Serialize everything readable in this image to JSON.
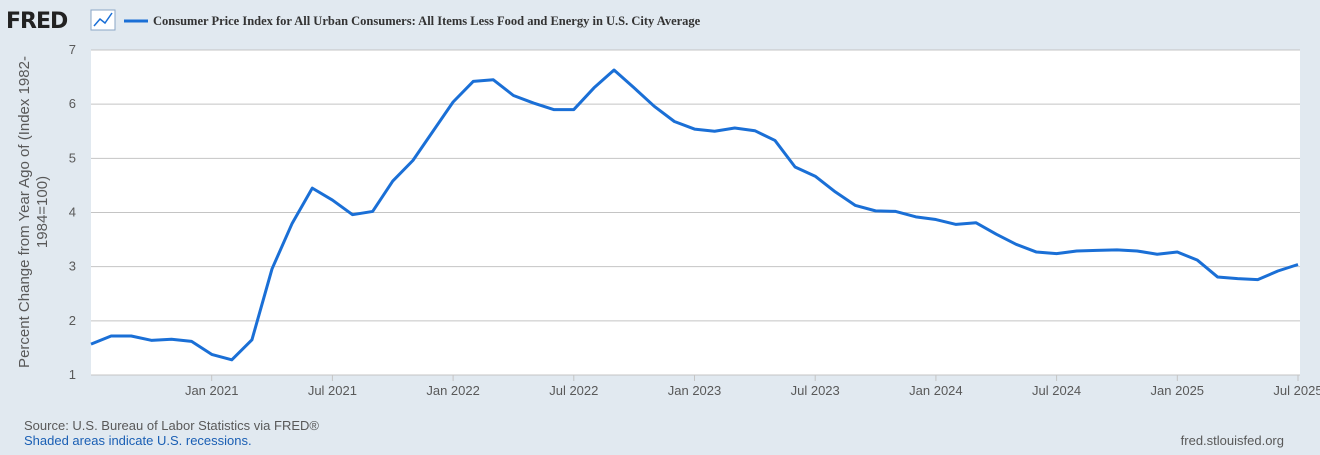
{
  "header": {
    "logo": "FRED"
  },
  "chart_data": {
    "type": "line",
    "title": "Consumer Price Index for All Urban Consumers: All Items Less Food and Energy in U.S. City Average",
    "y_label": [
      "Percent Change from Year Ago of (Index 1982-",
      "1984=100)"
    ],
    "x": [
      "2020-07",
      "2020-08",
      "2020-09",
      "2020-10",
      "2020-11",
      "2020-12",
      "2021-01",
      "2021-02",
      "2021-03",
      "2021-04",
      "2021-05",
      "2021-06",
      "2021-07",
      "2021-08",
      "2021-09",
      "2021-10",
      "2021-11",
      "2021-12",
      "2022-01",
      "2022-02",
      "2022-03",
      "2022-04",
      "2022-05",
      "2022-06",
      "2022-07",
      "2022-08",
      "2022-09",
      "2022-10",
      "2022-11",
      "2022-12",
      "2023-01",
      "2023-02",
      "2023-03",
      "2023-04",
      "2023-05",
      "2023-06",
      "2023-07",
      "2023-08",
      "2023-09",
      "2023-10",
      "2023-11",
      "2023-12",
      "2024-01",
      "2024-02",
      "2024-03",
      "2024-04",
      "2024-05",
      "2024-06",
      "2024-07",
      "2024-08",
      "2024-09",
      "2024-10",
      "2024-11",
      "2024-12",
      "2025-01",
      "2025-02",
      "2025-03",
      "2025-04",
      "2025-05",
      "2025-06",
      "2025-07"
    ],
    "series": [
      {
        "name": "Consumer Price Index for All Urban Consumers: All Items Less Food and Energy in U.S. City Average",
        "color": "#1a6fd6",
        "values": [
          1.57,
          1.72,
          1.72,
          1.64,
          1.66,
          1.62,
          1.38,
          1.28,
          1.65,
          2.96,
          3.8,
          4.45,
          4.23,
          3.96,
          4.02,
          4.58,
          4.96,
          5.5,
          6.04,
          6.42,
          6.45,
          6.16,
          6.02,
          5.9,
          5.9,
          6.3,
          6.63,
          6.3,
          5.96,
          5.68,
          5.54,
          5.5,
          5.56,
          5.51,
          5.33,
          4.84,
          4.67,
          4.38,
          4.13,
          4.03,
          4.02,
          3.92,
          3.87,
          3.78,
          3.81,
          3.6,
          3.41,
          3.27,
          3.24,
          3.29,
          3.3,
          3.31,
          3.29,
          3.23,
          3.27,
          3.12,
          2.81,
          2.78,
          2.76,
          2.92,
          3.04
        ]
      }
    ],
    "xlim": [
      "2020-07",
      "2025-07"
    ],
    "xticks": [
      {
        "value": "2021-01",
        "label": "Jan 2021"
      },
      {
        "value": "2021-07",
        "label": "Jul 2021"
      },
      {
        "value": "2022-01",
        "label": "Jan 2022"
      },
      {
        "value": "2022-07",
        "label": "Jul 2022"
      },
      {
        "value": "2023-01",
        "label": "Jan 2023"
      },
      {
        "value": "2023-07",
        "label": "Jul 2023"
      },
      {
        "value": "2024-01",
        "label": "Jan 2024"
      },
      {
        "value": "2024-07",
        "label": "Jul 2024"
      },
      {
        "value": "2025-01",
        "label": "Jan 2025"
      },
      {
        "value": "2025-07",
        "label": "Jul 2025"
      }
    ],
    "ylim": [
      1,
      7
    ],
    "yticks": [
      1,
      2,
      3,
      4,
      5,
      6,
      7
    ],
    "grid": true
  },
  "footer": {
    "source": "Source: U.S. Bureau of Labor Statistics via FRED®",
    "note": "Shaded areas indicate U.S. recessions.",
    "site": "fred.stlouisfed.org"
  }
}
